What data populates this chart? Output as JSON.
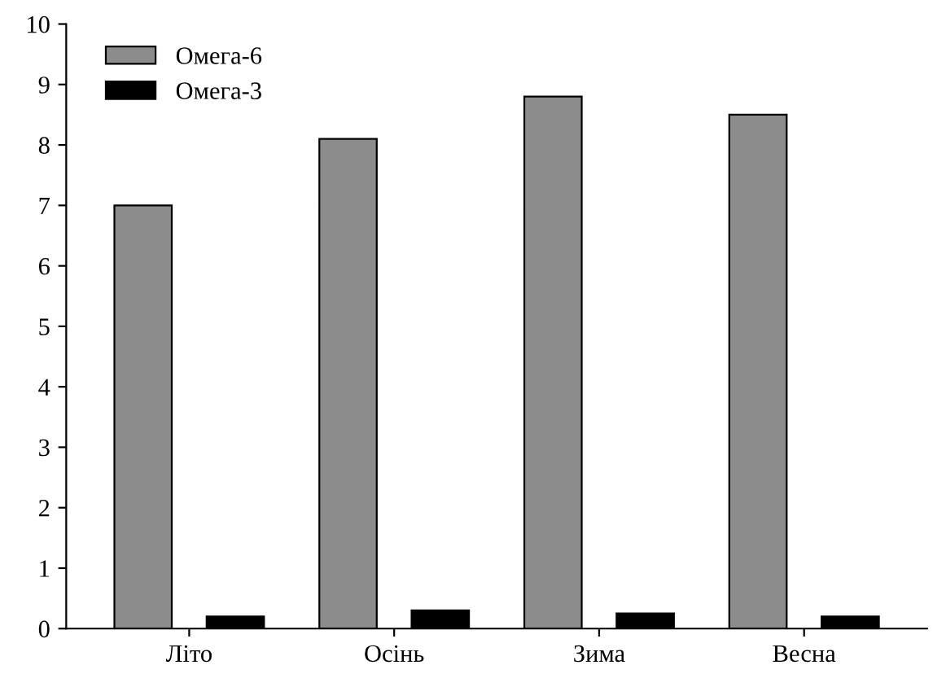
{
  "chart_data": {
    "type": "bar",
    "categories": [
      "Літо",
      "Осінь",
      "Зима",
      "Весна"
    ],
    "series": [
      {
        "name": "Омега-6",
        "color": "#8c8c8c",
        "values": [
          7.0,
          8.1,
          8.8,
          8.5
        ]
      },
      {
        "name": "Омега-3",
        "color": "#000000",
        "values": [
          0.2,
          0.3,
          0.25,
          0.2
        ]
      }
    ],
    "ylim": [
      0,
      10
    ],
    "yticks": [
      0,
      1,
      2,
      3,
      4,
      5,
      6,
      7,
      8,
      9,
      10
    ],
    "grid": false,
    "legend": "top left"
  }
}
